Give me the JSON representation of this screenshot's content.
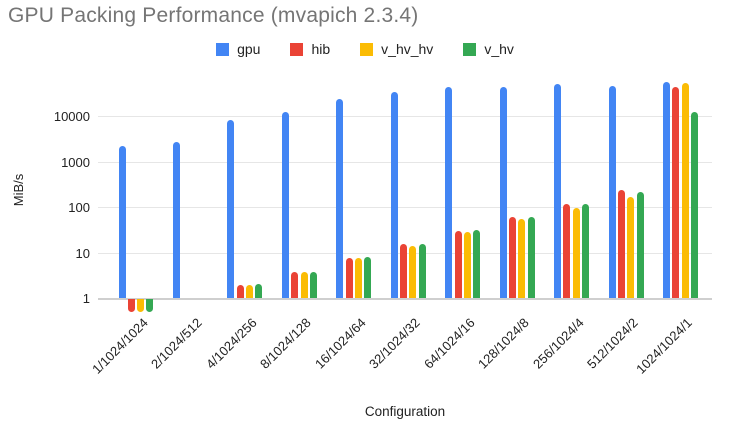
{
  "chart_data": {
    "type": "bar",
    "title": "GPU Packing Performance (mvapich 2.3.4)",
    "xlabel": "Configuration",
    "ylabel": "MiB/s",
    "y_scale": "log",
    "y_ticks": [
      1,
      10,
      100,
      1000,
      10000
    ],
    "ylim": [
      0.48,
      63000
    ],
    "grid": true,
    "legend_position": "top",
    "categories": [
      "1/1024/1024",
      "2/1024/512",
      "4/1024/256",
      "8/1024/128",
      "16/1024/64",
      "32/1024/32",
      "64/1024/16",
      "128/1024/8",
      "256/1024/4",
      "512/1024/2",
      "1024/1024/1"
    ],
    "series": [
      {
        "name": "gpu",
        "color": "#4285F4",
        "values": [
          2200,
          2800,
          8300,
          12700,
          24000,
          35000,
          44000,
          45000,
          51000,
          47000,
          58000
        ]
      },
      {
        "name": "hib",
        "color": "#EA4335",
        "values": [
          0.5,
          null,
          2.0,
          3.9,
          7.9,
          15.5,
          30,
          61,
          120,
          240,
          44000
        ]
      },
      {
        "name": "v_hv_hv",
        "color": "#FBBC04",
        "values": [
          0.5,
          null,
          2.0,
          3.8,
          7.8,
          14.5,
          29,
          55,
          96,
          167,
          54000
        ]
      },
      {
        "name": "v_hv",
        "color": "#34A853",
        "values": [
          0.5,
          null,
          2.1,
          3.9,
          8.1,
          16,
          32,
          63,
          120,
          224,
          12700
        ]
      }
    ]
  }
}
